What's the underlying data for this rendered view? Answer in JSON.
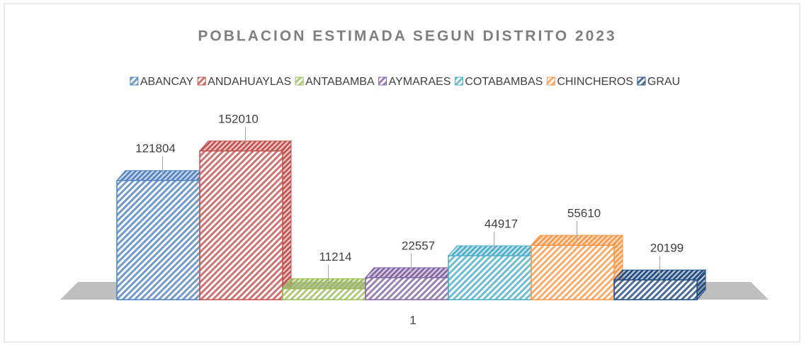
{
  "chart_data": {
    "type": "bar3d",
    "title": "POBLACION ESTIMADA SEGUN DISTRITO 2023",
    "categories": [
      "1"
    ],
    "series": [
      {
        "name": "ABANCAY",
        "color": "#4f81bd",
        "values": [
          121804
        ]
      },
      {
        "name": "ANDAHUAYLAS",
        "color": "#c0504d",
        "values": [
          152010
        ]
      },
      {
        "name": "ANTABAMBA",
        "color": "#9bbb59",
        "values": [
          11214
        ]
      },
      {
        "name": "AYMARAES",
        "color": "#8064a2",
        "values": [
          22557
        ]
      },
      {
        "name": "COTABAMBAS",
        "color": "#4bacc6",
        "values": [
          44917
        ]
      },
      {
        "name": "CHINCHEROS",
        "color": "#f79646",
        "values": [
          55610
        ]
      },
      {
        "name": "GRAU",
        "color": "#1f497d",
        "values": [
          20199
        ]
      }
    ],
    "legend": "top"
  }
}
